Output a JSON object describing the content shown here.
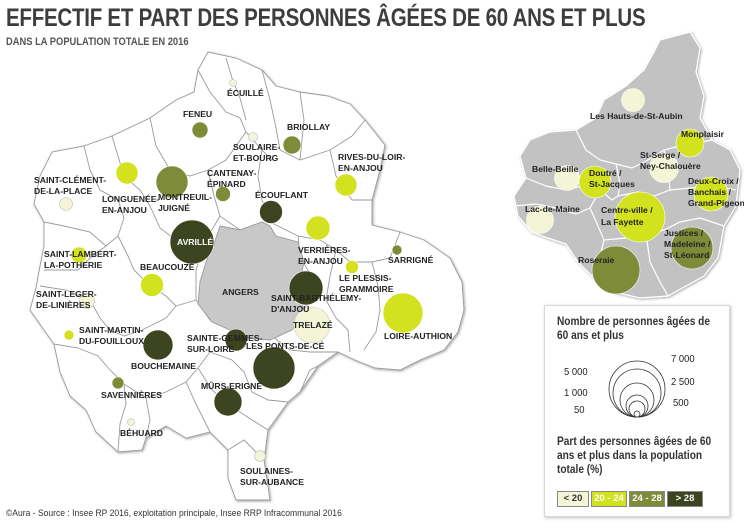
{
  "title": "EFFECTIF ET PART DES PERSONNES ÂGÉES DE 60 ANS ET PLUS",
  "subtitle": "DANS LA POPULATION TOTALE EN 2016",
  "source": "©Aura - Source : Insee RP 2016, exploitation principale, Insee RRP Infracommunal 2016",
  "colors": {
    "lt20": "#f4f5d6",
    "c20_24": "#d2e21e",
    "c24_28": "#7e8c3a",
    "gt28": "#3c4420",
    "commune_fill": "#ffffff",
    "angers_fill": "#c8c8c8",
    "border": "#9a9a9a"
  },
  "communes": [
    {
      "label": "ÉCUILLÉ",
      "circle_color": "lt20"
    },
    {
      "label": "FENEU",
      "circle_color": "c24_28"
    },
    {
      "label": "SOULAIRE-ET-BOURG",
      "circle_color": "lt20"
    },
    {
      "label": "BRIOLLAY",
      "circle_color": "c24_28"
    },
    {
      "label": "SAINT-CLÉMENT-DE-LA-PLACE",
      "circle_color": "lt20"
    },
    {
      "label": "LONGUENÉE-EN-ANJOU",
      "circle_color": "c20_24"
    },
    {
      "label": "MONTREUIL-JUIGNÉ",
      "circle_color": "c24_28"
    },
    {
      "label": "CANTENAY-ÉPINARD",
      "circle_color": "c24_28"
    },
    {
      "label": "ÉCOUFLANT",
      "circle_color": "gt28"
    },
    {
      "label": "RIVES-DU-LOIR-EN-ANJOU",
      "circle_color": "c20_24"
    },
    {
      "label": "AVRILLÉ",
      "circle_color": "gt28"
    },
    {
      "label": "VERRIÈRES-EN-ANJOU",
      "circle_color": "c20_24"
    },
    {
      "label": "SARRIGNÉ",
      "circle_color": "c24_28"
    },
    {
      "label": "SAINT-LAMBERT-LA-POTHERIE",
      "circle_color": "c20_24"
    },
    {
      "label": "BEAUCOUZÉ",
      "circle_color": "c20_24"
    },
    {
      "label": "ANGERS",
      "circle_color": ""
    },
    {
      "label": "LE PLESSIS-GRAMMOIRE",
      "circle_color": "c20_24"
    },
    {
      "label": "SAINT-BARTHÉLEMY-D'ANJOU",
      "circle_color": "gt28"
    },
    {
      "label": "SAINT-LEGER-DE-LINIÈRES",
      "circle_color": "lt20"
    },
    {
      "label": "TRELAZÉ",
      "circle_color": "lt20"
    },
    {
      "label": "LOIRE-AUTHION",
      "circle_color": "c20_24"
    },
    {
      "label": "SAINT-MARTIN-DU-FOUILLOUX",
      "circle_color": "c20_24"
    },
    {
      "label": "SAINTE-GEMMES-SUR-LOIRE",
      "circle_color": "gt28"
    },
    {
      "label": "LES PONTS-DE-CÉ",
      "circle_color": "gt28"
    },
    {
      "label": "BOUCHEMAINE",
      "circle_color": "gt28"
    },
    {
      "label": "MÛRS-ERIGNÉ",
      "circle_color": "gt28"
    },
    {
      "label": "SAVENNIÈRES",
      "circle_color": "c24_28"
    },
    {
      "label": "BÉHUARD",
      "circle_color": "lt20"
    },
    {
      "label": "SOULAINES-SUR-AUBANCE",
      "circle_color": "lt20"
    }
  ],
  "quartiers": [
    {
      "label": "Les Hauts-de-St-Aubin",
      "circle_color": "lt20"
    },
    {
      "label": "Monplaisir",
      "circle_color": "c20_24"
    },
    {
      "label": "Belle-Beille",
      "circle_color": "lt20"
    },
    {
      "label": "Doutré / St-Jacques",
      "circle_color": "c20_24"
    },
    {
      "label": "St-Serge / Ney-Chalouère",
      "circle_color": "lt20"
    },
    {
      "label": "Deux-Croix / Banchais / Grand-Pigeon",
      "circle_color": "c20_24"
    },
    {
      "label": "Lac-de-Maine",
      "circle_color": "lt20"
    },
    {
      "label": "Centre-ville / La Fayette",
      "circle_color": "c20_24"
    },
    {
      "label": "Justices / Madeleine / St-Léonard",
      "circle_color": "c24_28"
    },
    {
      "label": "Roseraie",
      "circle_color": "c24_28"
    }
  ],
  "legend": {
    "size_title": "Nombre de personnes âgées de 60 ans et plus",
    "sizes": [
      "7 000",
      "5 000",
      "2 500",
      "1 000",
      "500",
      "50"
    ],
    "share_title": "Part des personnes âgées de 60 ans et plus dans la population totale (%)",
    "classes": [
      {
        "label": "< 20",
        "color": "lt20"
      },
      {
        "label": "20 - 24",
        "color": "c20_24"
      },
      {
        "label": "24 - 28",
        "color": "c24_28"
      },
      {
        "label": "> 28",
        "color": "gt28"
      }
    ]
  }
}
